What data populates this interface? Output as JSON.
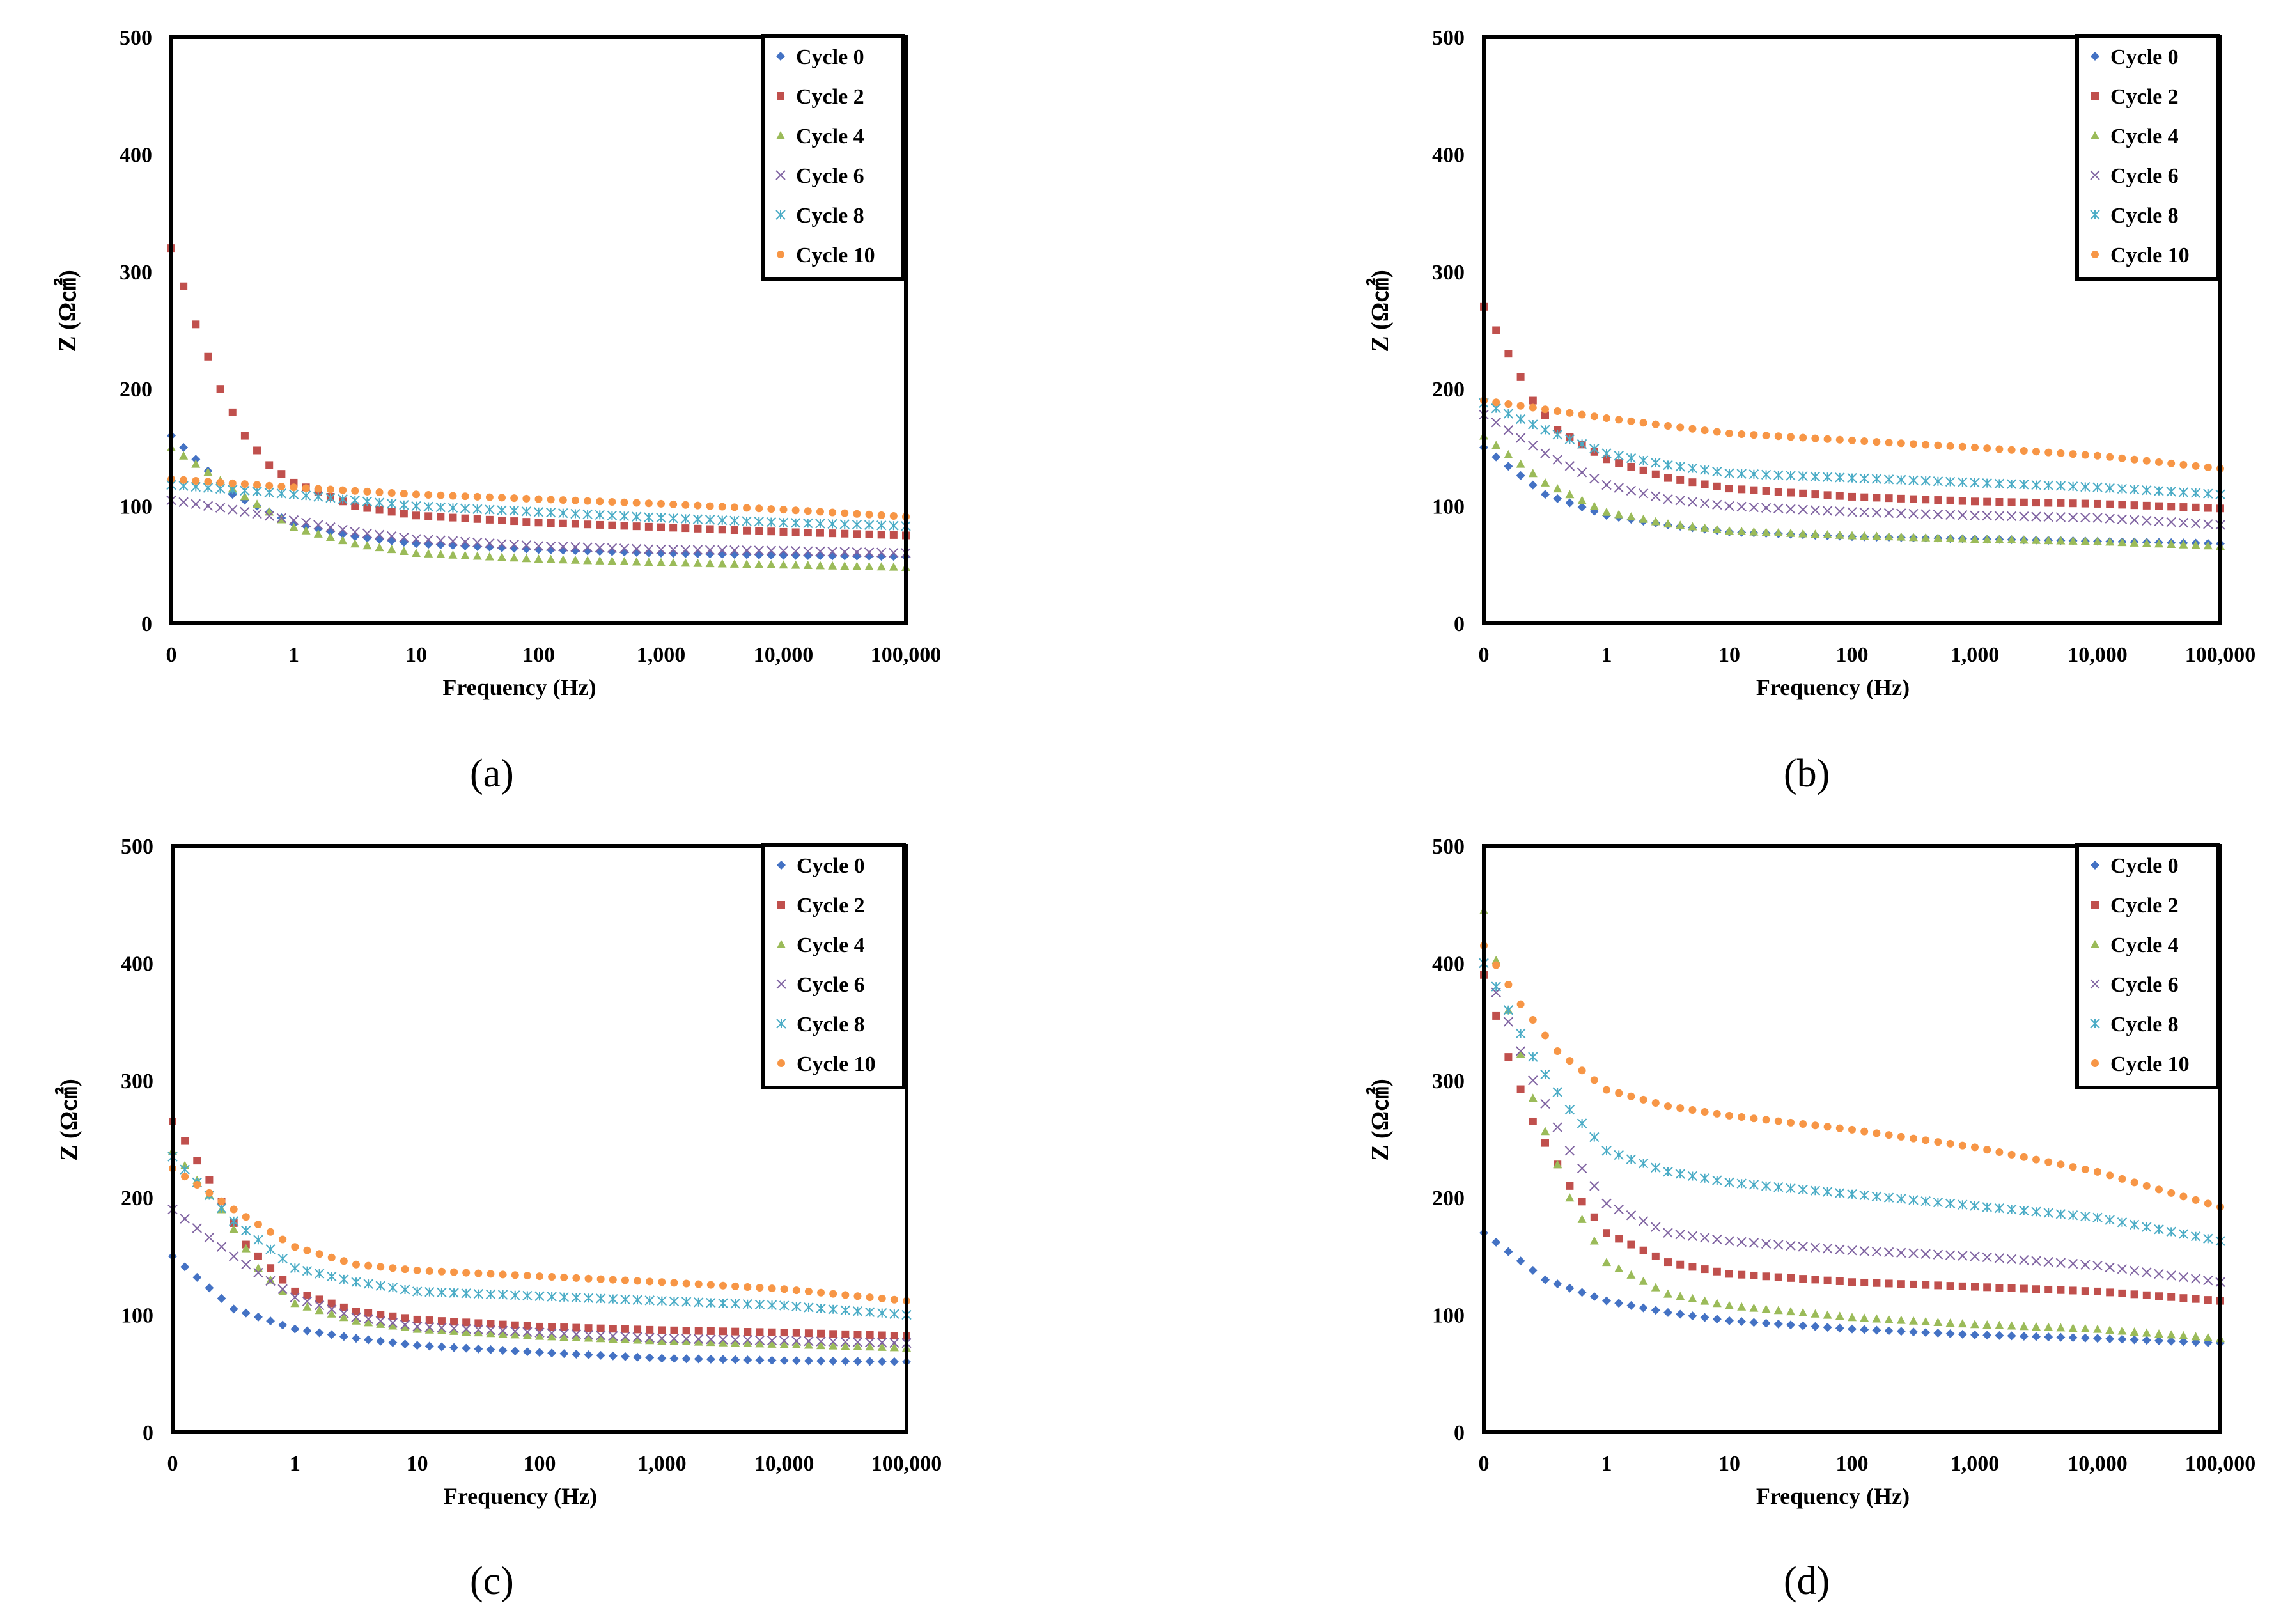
{
  "figure_captions": [
    "(a)",
    "(b)",
    "(c)",
    "(d)"
  ],
  "series_colors": {
    "Cycle 0": "#4472C4",
    "Cycle 2": "#C0504D",
    "Cycle 4": "#9BBB59",
    "Cycle 6": "#8064A2",
    "Cycle 8": "#4BACC6",
    "Cycle 10": "#F79646"
  },
  "series_markers": {
    "Cycle 0": "diamond",
    "Cycle 2": "square",
    "Cycle 4": "triangle",
    "Cycle 6": "x",
    "Cycle 8": "star",
    "Cycle 10": "circle"
  },
  "chart_data": [
    {
      "panel": "(a)",
      "type": "scatter",
      "xlabel": "Frequency (Hz)",
      "ylabel": "Z (Ω㎠)",
      "xscale": "log",
      "xlim": [
        0.1,
        100000
      ],
      "ylim": [
        0,
        500
      ],
      "yticks": [
        0,
        100,
        200,
        300,
        400,
        500
      ],
      "xticks": [
        "0",
        "1",
        "10",
        "100",
        "1,000",
        "10,000",
        "100,000"
      ],
      "legend": "top-right",
      "series": [
        {
          "name": "Cycle 0",
          "anchors": [
            [
              -1,
              160
            ],
            [
              -0.5,
              110
            ],
            [
              0,
              85
            ],
            [
              0.5,
              74
            ],
            [
              1,
              68
            ],
            [
              2,
              63
            ],
            [
              3,
              60
            ],
            [
              4,
              58
            ],
            [
              5,
              57
            ]
          ]
        },
        {
          "name": "Cycle 2",
          "anchors": [
            [
              -1,
              320
            ],
            [
              -0.8,
              255
            ],
            [
              -0.6,
              200
            ],
            [
              -0.4,
              160
            ],
            [
              -0.2,
              135
            ],
            [
              0,
              120
            ],
            [
              0.5,
              100
            ],
            [
              1,
              92
            ],
            [
              2,
              86
            ],
            [
              3,
              82
            ],
            [
              4,
              78
            ],
            [
              5,
              75
            ]
          ]
        },
        {
          "name": "Cycle 4",
          "anchors": [
            [
              -1,
              150
            ],
            [
              -0.5,
              115
            ],
            [
              0,
              82
            ],
            [
              0.5,
              68
            ],
            [
              1,
              60
            ],
            [
              2,
              55
            ],
            [
              3,
              52
            ],
            [
              4,
              50
            ],
            [
              5,
              48
            ]
          ]
        },
        {
          "name": "Cycle 6",
          "anchors": [
            [
              -1,
              105
            ],
            [
              -0.5,
              97
            ],
            [
              0,
              88
            ],
            [
              0.5,
              78
            ],
            [
              1,
              72
            ],
            [
              2,
              66
            ],
            [
              3,
              63
            ],
            [
              4,
              62
            ],
            [
              5,
              60
            ]
          ]
        },
        {
          "name": "Cycle 8",
          "anchors": [
            [
              -1,
              118
            ],
            [
              0,
              110
            ],
            [
              1,
              100
            ],
            [
              2,
              95
            ],
            [
              3,
              90
            ],
            [
              4,
              86
            ],
            [
              5,
              83
            ]
          ]
        },
        {
          "name": "Cycle 10",
          "anchors": [
            [
              -1,
              123
            ],
            [
              0,
              116
            ],
            [
              1,
              110
            ],
            [
              2,
              106
            ],
            [
              3,
              102
            ],
            [
              4,
              97
            ],
            [
              5,
              91
            ]
          ]
        }
      ]
    },
    {
      "panel": "(b)",
      "type": "scatter",
      "xlabel": "Frequency (Hz)",
      "ylabel": "Z (Ω㎠)",
      "xscale": "log",
      "xlim": [
        0.1,
        100000
      ],
      "ylim": [
        0,
        500
      ],
      "yticks": [
        0,
        100,
        200,
        300,
        400,
        500
      ],
      "xticks": [
        "0",
        "1",
        "10",
        "100",
        "1,000",
        "10,000",
        "100,000"
      ],
      "legend": "top-right",
      "series": [
        {
          "name": "Cycle 0",
          "anchors": [
            [
              -1,
              150
            ],
            [
              -0.5,
              110
            ],
            [
              0,
              92
            ],
            [
              0.5,
              84
            ],
            [
              1,
              78
            ],
            [
              2,
              74
            ],
            [
              3,
              72
            ],
            [
              4,
              70
            ],
            [
              5,
              68
            ]
          ]
        },
        {
          "name": "Cycle 2",
          "anchors": [
            [
              -1,
              270
            ],
            [
              -0.8,
              230
            ],
            [
              -0.6,
              190
            ],
            [
              -0.4,
              165
            ],
            [
              0,
              140
            ],
            [
              0.5,
              124
            ],
            [
              1,
              115
            ],
            [
              2,
              108
            ],
            [
              3,
              104
            ],
            [
              4,
              102
            ],
            [
              5,
              98
            ]
          ]
        },
        {
          "name": "Cycle 4",
          "anchors": [
            [
              -1,
              160
            ],
            [
              -0.5,
              120
            ],
            [
              0,
              95
            ],
            [
              0.5,
              85
            ],
            [
              1,
              79
            ],
            [
              2,
              75
            ],
            [
              3,
              72
            ],
            [
              4,
              70
            ],
            [
              5,
              66
            ]
          ]
        },
        {
          "name": "Cycle 6",
          "anchors": [
            [
              -1,
              178
            ],
            [
              -0.5,
              145
            ],
            [
              0,
              118
            ],
            [
              0.5,
              106
            ],
            [
              1,
              100
            ],
            [
              2,
              95
            ],
            [
              3,
              92
            ],
            [
              4,
              90
            ],
            [
              5,
              84
            ]
          ]
        },
        {
          "name": "Cycle 8",
          "anchors": [
            [
              -1,
              188
            ],
            [
              -0.5,
              165
            ],
            [
              0,
              145
            ],
            [
              0.5,
              135
            ],
            [
              1,
              128
            ],
            [
              2,
              124
            ],
            [
              3,
              120
            ],
            [
              4,
              116
            ],
            [
              5,
              110
            ]
          ]
        },
        {
          "name": "Cycle 10",
          "anchors": [
            [
              -1,
              190
            ],
            [
              0,
              175
            ],
            [
              1,
              162
            ],
            [
              2,
              156
            ],
            [
              3,
              150
            ],
            [
              4,
              143
            ],
            [
              5,
              132
            ]
          ]
        }
      ]
    },
    {
      "panel": "(c)",
      "type": "scatter",
      "xlabel": "Frequency (Hz)",
      "ylabel": "Z (Ω㎠)",
      "xscale": "log",
      "xlim": [
        0.1,
        100000
      ],
      "ylim": [
        0,
        500
      ],
      "yticks": [
        0,
        100,
        200,
        300,
        400,
        500
      ],
      "xticks": [
        "0",
        "1",
        "10",
        "100",
        "1,000",
        "10,000",
        "100,000"
      ],
      "legend": "top-right",
      "series": [
        {
          "name": "Cycle 0",
          "anchors": [
            [
              -1,
              150
            ],
            [
              -0.5,
              105
            ],
            [
              0,
              88
            ],
            [
              0.5,
              80
            ],
            [
              1,
              74
            ],
            [
              2,
              68
            ],
            [
              3,
              63
            ],
            [
              4,
              61
            ],
            [
              5,
              60
            ]
          ]
        },
        {
          "name": "Cycle 2",
          "anchors": [
            [
              -1,
              265
            ],
            [
              -0.7,
              215
            ],
            [
              -0.4,
              160
            ],
            [
              0,
              120
            ],
            [
              0.5,
              103
            ],
            [
              1,
              96
            ],
            [
              2,
              90
            ],
            [
              3,
              87
            ],
            [
              4,
              85
            ],
            [
              5,
              82
            ]
          ]
        },
        {
          "name": "Cycle 4",
          "anchors": [
            [
              -1,
              240
            ],
            [
              -0.6,
              190
            ],
            [
              -0.3,
              140
            ],
            [
              0,
              110
            ],
            [
              0.5,
              95
            ],
            [
              1,
              88
            ],
            [
              2,
              82
            ],
            [
              3,
              78
            ],
            [
              4,
              75
            ],
            [
              5,
              72
            ]
          ]
        },
        {
          "name": "Cycle 6",
          "anchors": [
            [
              -1,
              190
            ],
            [
              -0.5,
              150
            ],
            [
              0,
              115
            ],
            [
              0.5,
              98
            ],
            [
              1,
              90
            ],
            [
              2,
              85
            ],
            [
              3,
              80
            ],
            [
              4,
              78
            ],
            [
              5,
              76
            ]
          ]
        },
        {
          "name": "Cycle 8",
          "anchors": [
            [
              -1,
              235
            ],
            [
              -0.5,
              180
            ],
            [
              0,
              140
            ],
            [
              0.5,
              128
            ],
            [
              1,
              120
            ],
            [
              2,
              116
            ],
            [
              3,
              112
            ],
            [
              4,
              108
            ],
            [
              5,
              100
            ]
          ]
        },
        {
          "name": "Cycle 10",
          "anchors": [
            [
              -1,
              225
            ],
            [
              -0.5,
              190
            ],
            [
              0,
              158
            ],
            [
              0.5,
              143
            ],
            [
              1,
              138
            ],
            [
              2,
              133
            ],
            [
              3,
              128
            ],
            [
              4,
              122
            ],
            [
              5,
              112
            ]
          ]
        }
      ]
    },
    {
      "panel": "(d)",
      "type": "scatter",
      "xlabel": "Frequency (Hz)",
      "ylabel": "Z (Ω㎠)",
      "xscale": "log",
      "xlim": [
        0.1,
        100000
      ],
      "ylim": [
        0,
        500
      ],
      "yticks": [
        0,
        100,
        200,
        300,
        400,
        500
      ],
      "xticks": [
        "0",
        "1",
        "10",
        "100",
        "1,000",
        "10,000",
        "100,000"
      ],
      "legend": "top-right",
      "series": [
        {
          "name": "Cycle 0",
          "anchors": [
            [
              -1,
              170
            ],
            [
              -0.5,
              130
            ],
            [
              0,
              112
            ],
            [
              0.5,
              102
            ],
            [
              1,
              95
            ],
            [
              2,
              88
            ],
            [
              3,
              83
            ],
            [
              4,
              80
            ],
            [
              5,
              76
            ]
          ]
        },
        {
          "name": "Cycle 2",
          "anchors": [
            [
              -1,
              390
            ],
            [
              -0.8,
              320
            ],
            [
              -0.6,
              265
            ],
            [
              -0.3,
              210
            ],
            [
              0,
              170
            ],
            [
              0.5,
              145
            ],
            [
              1,
              135
            ],
            [
              2,
              128
            ],
            [
              3,
              124
            ],
            [
              4,
              120
            ],
            [
              5,
              112
            ]
          ]
        },
        {
          "name": "Cycle 4",
          "anchors": [
            [
              -1,
              445
            ],
            [
              -0.8,
              360
            ],
            [
              -0.6,
              285
            ],
            [
              -0.3,
              200
            ],
            [
              0,
              145
            ],
            [
              0.5,
              118
            ],
            [
              1,
              108
            ],
            [
              2,
              98
            ],
            [
              3,
              92
            ],
            [
              4,
              88
            ],
            [
              5,
              80
            ]
          ]
        },
        {
          "name": "Cycle 6",
          "anchors": [
            [
              -1,
              400
            ],
            [
              -0.8,
              350
            ],
            [
              -0.6,
              300
            ],
            [
              -0.3,
              240
            ],
            [
              0,
              195
            ],
            [
              0.5,
              170
            ],
            [
              1,
              163
            ],
            [
              2,
              155
            ],
            [
              3,
              150
            ],
            [
              4,
              142
            ],
            [
              5,
              128
            ]
          ]
        },
        {
          "name": "Cycle 8",
          "anchors": [
            [
              -1,
              400
            ],
            [
              -0.8,
              360
            ],
            [
              -0.6,
              320
            ],
            [
              -0.3,
              275
            ],
            [
              0,
              240
            ],
            [
              0.5,
              222
            ],
            [
              1,
              213
            ],
            [
              2,
              203
            ],
            [
              3,
              193
            ],
            [
              4,
              183
            ],
            [
              5,
              163
            ]
          ]
        },
        {
          "name": "Cycle 10",
          "anchors": [
            [
              -1,
              415
            ],
            [
              -0.7,
              365
            ],
            [
              -0.4,
              325
            ],
            [
              0,
              292
            ],
            [
              0.5,
              278
            ],
            [
              1,
              270
            ],
            [
              2,
              258
            ],
            [
              3,
              243
            ],
            [
              4,
              222
            ],
            [
              5,
              192
            ]
          ]
        }
      ]
    }
  ]
}
